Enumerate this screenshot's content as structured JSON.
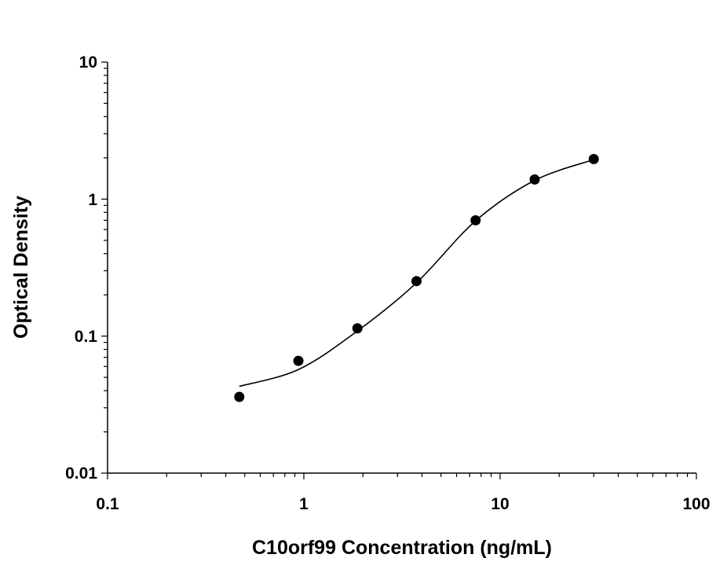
{
  "chart_data": {
    "type": "scatter",
    "title": "",
    "xlabel": "C10orf99 Concentration (ng/mL)",
    "ylabel": "Optical Density",
    "xscale": "log",
    "yscale": "log",
    "xlim": [
      0.1,
      100
    ],
    "ylim": [
      0.01,
      10
    ],
    "xticks": [
      "0.1",
      "1",
      "10",
      "100"
    ],
    "yticks": [
      "0.01",
      "0.1",
      "1",
      "10"
    ],
    "grid": false,
    "marker_color": "#000000",
    "line_color": "#000000",
    "points": {
      "x": [
        0.469,
        0.938,
        1.875,
        3.75,
        7.5,
        15,
        30
      ],
      "y": [
        0.036,
        0.066,
        0.114,
        0.252,
        0.7,
        1.39,
        1.96
      ]
    },
    "fit_curve": {
      "x": [
        0.469,
        0.938,
        1.875,
        3.75,
        7.5,
        15,
        30
      ],
      "y": [
        0.043,
        0.057,
        0.109,
        0.245,
        0.694,
        1.37,
        1.94
      ]
    }
  }
}
